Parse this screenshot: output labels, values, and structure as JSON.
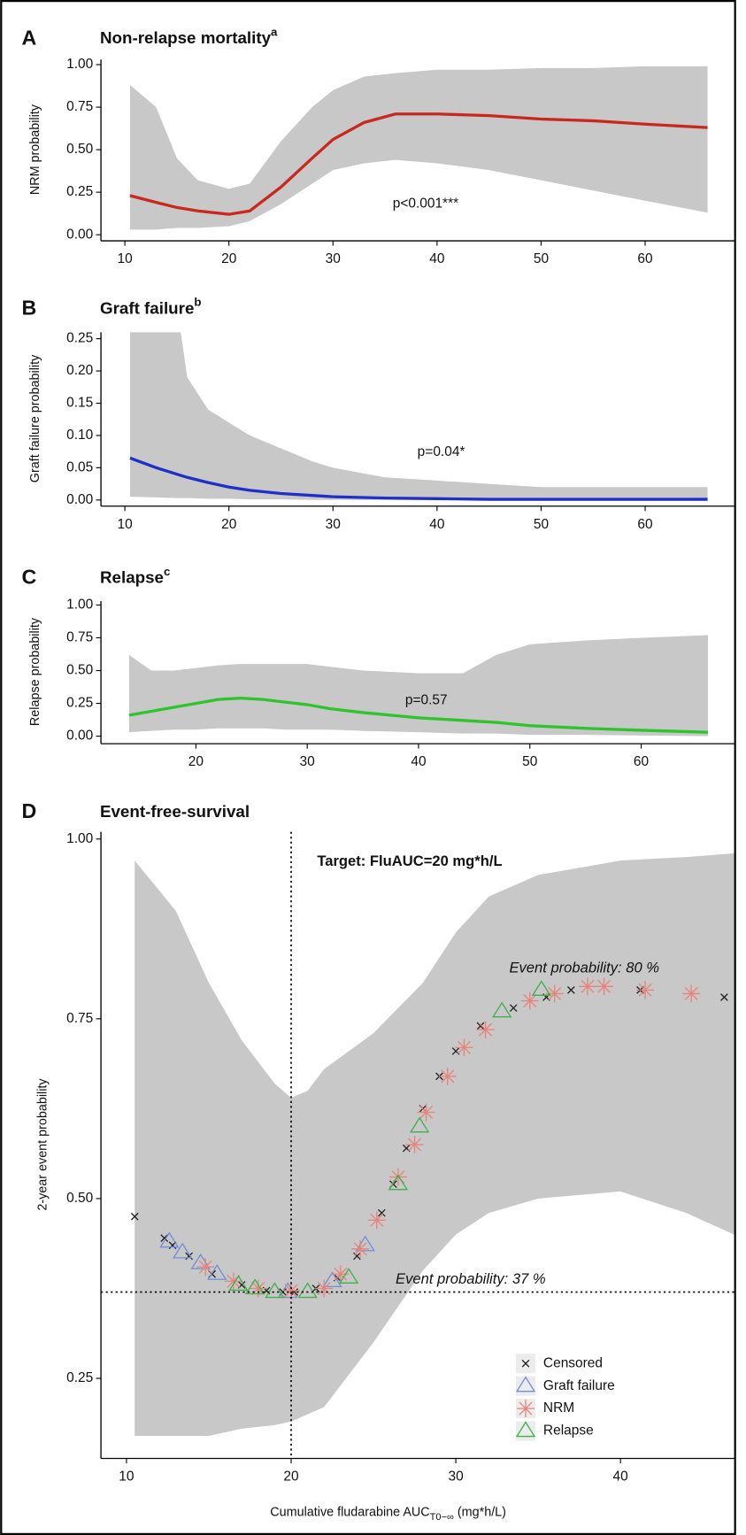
{
  "chart_data": [
    {
      "type": "line",
      "panel": "A",
      "title": "Non-relapse mortality",
      "title_superscript": "a",
      "ylabel": "NRM probability",
      "xlim": [
        7.7,
        68.55
      ],
      "ylim": [
        -0.03,
        1.03
      ],
      "xticks": [
        10,
        20,
        30,
        40,
        50,
        60
      ],
      "yticks": [
        {
          "value": 0,
          "label": "0.00"
        },
        0.25,
        {
          "value": 0.5,
          "label": "0.50"
        },
        0.75,
        {
          "value": 1,
          "label": "1.00"
        }
      ],
      "color": "#c8281e",
      "band_color": "#c8c8c8",
      "x": [
        10.5,
        13,
        15,
        17,
        20,
        22,
        25,
        28,
        30,
        33,
        36,
        40,
        45,
        50,
        55,
        60,
        66
      ],
      "values": [
        0.23,
        0.19,
        0.16,
        0.14,
        0.12,
        0.14,
        0.28,
        0.45,
        0.56,
        0.66,
        0.71,
        0.71,
        0.7,
        0.68,
        0.67,
        0.65,
        0.63
      ],
      "upper": [
        0.88,
        0.75,
        0.45,
        0.32,
        0.27,
        0.3,
        0.55,
        0.75,
        0.85,
        0.93,
        0.95,
        0.97,
        0.97,
        0.98,
        0.98,
        0.99,
        0.99
      ],
      "lower": [
        0.03,
        0.03,
        0.04,
        0.04,
        0.05,
        0.08,
        0.18,
        0.3,
        0.38,
        0.42,
        0.44,
        0.42,
        0.38,
        0.32,
        0.26,
        0.2,
        0.13
      ],
      "annotations": [
        {
          "text": "p<0.001***",
          "x": 38.9,
          "y": 0.18
        }
      ]
    },
    {
      "type": "line",
      "panel": "B",
      "title": "Graft failure",
      "title_superscript": "b",
      "ylabel": "Graft failure probability",
      "xlim": [
        7.7,
        68.55
      ],
      "ylim": [
        -0.008,
        0.26
      ],
      "xticks": [
        10,
        20,
        30,
        40,
        50,
        60
      ],
      "yticks": [
        {
          "value": 0,
          "label": "0.00"
        },
        0.05,
        {
          "value": 0.1,
          "label": "0.10"
        },
        0.15,
        {
          "value": 0.2,
          "label": "0.20"
        },
        0.25
      ],
      "color": "#1f2fc8",
      "band_color": "#c8c8c8",
      "x": [
        10.5,
        13,
        15,
        16,
        18,
        20,
        22,
        25,
        28,
        30,
        35,
        40,
        45,
        50,
        55,
        60,
        66
      ],
      "values": [
        0.065,
        0.05,
        0.04,
        0.035,
        0.027,
        0.02,
        0.015,
        0.01,
        0.007,
        0.005,
        0.003,
        0.002,
        0.001,
        0.001,
        0.001,
        0.001,
        0.001
      ],
      "upper": [
        0.3,
        0.3,
        0.3,
        0.19,
        0.14,
        0.12,
        0.1,
        0.08,
        0.06,
        0.05,
        0.035,
        0.03,
        0.025,
        0.02,
        0.02,
        0.02,
        0.02
      ],
      "lower": [
        0.005,
        0.004,
        0.003,
        0.003,
        0.002,
        0.002,
        0.001,
        0.001,
        0,
        0,
        0,
        0,
        0,
        0,
        0,
        0,
        0
      ],
      "annotations": [
        {
          "text": "p=0.04*",
          "x": 40.4,
          "y": 0.074
        }
      ]
    },
    {
      "type": "line",
      "panel": "C",
      "title": "Relapse",
      "title_superscript": "c",
      "ylabel": "Relapse probability",
      "xlim": [
        11.47,
        68.35
      ],
      "ylim": [
        -0.05,
        1.03
      ],
      "xticks": [
        20,
        30,
        40,
        50,
        60
      ],
      "yticks": [
        {
          "value": 0,
          "label": "0.00"
        },
        0.25,
        {
          "value": 0.5,
          "label": "0.50"
        },
        0.75,
        {
          "value": 1,
          "label": "1.00"
        }
      ],
      "color": "#2ec42a",
      "band_color": "#c8c8c8",
      "x": [
        14,
        16,
        18,
        20,
        22,
        24,
        26,
        28,
        30,
        32,
        35,
        40,
        44,
        47,
        50,
        55,
        60,
        66
      ],
      "values": [
        0.16,
        0.19,
        0.22,
        0.25,
        0.28,
        0.29,
        0.28,
        0.26,
        0.24,
        0.21,
        0.18,
        0.14,
        0.12,
        0.105,
        0.08,
        0.06,
        0.045,
        0.03
      ],
      "upper": [
        0.62,
        0.5,
        0.5,
        0.52,
        0.54,
        0.55,
        0.55,
        0.55,
        0.55,
        0.53,
        0.5,
        0.48,
        0.48,
        0.62,
        0.7,
        0.73,
        0.75,
        0.77
      ],
      "lower": [
        0.03,
        0.04,
        0.05,
        0.05,
        0.06,
        0.06,
        0.06,
        0.05,
        0.05,
        0.05,
        0.04,
        0.03,
        0.02,
        0.02,
        0.01,
        0.01,
        0.005,
        0
      ],
      "annotations": [
        {
          "text": "p=0.57",
          "x": 40.7,
          "y": 0.27
        }
      ]
    },
    {
      "type": "scatter",
      "panel": "D",
      "title": "Event-free-survival",
      "ylabel": "2-year event probability",
      "xlabel": [
        "Cumulative fludarabine AUC",
        "T0−∞",
        " (mg*h/L)"
      ],
      "xlim": [
        8.45,
        46.9
      ],
      "ylim": [
        0.14,
        1.01
      ],
      "xticks": [
        10,
        20,
        30,
        40
      ],
      "yticks": [
        0.25,
        {
          "value": 0.5,
          "label": "0.50"
        },
        0.75,
        {
          "value": 1,
          "label": "1.00"
        }
      ],
      "band_color": "#c8c8c8",
      "x": [
        10.5,
        13,
        15,
        17,
        19,
        20,
        21,
        22,
        25,
        28,
        30,
        32,
        35,
        40,
        44,
        46.9
      ],
      "upper": [
        0.97,
        0.9,
        0.8,
        0.72,
        0.66,
        0.64,
        0.65,
        0.68,
        0.73,
        0.8,
        0.87,
        0.92,
        0.95,
        0.97,
        0.975,
        0.98
      ],
      "lower": [
        0.17,
        0.17,
        0.17,
        0.18,
        0.185,
        0.19,
        0.2,
        0.21,
        0.3,
        0.4,
        0.45,
        0.48,
        0.5,
        0.51,
        0.48,
        0.45
      ],
      "vline": 20,
      "hline": 0.37,
      "annotations": [
        {
          "text": "Target: FluAUC=20 mg*h/L",
          "x": 27.2,
          "y": 0.968
        },
        {
          "text": "Event probability: 80 %",
          "x": 37.8,
          "y": 0.82
        },
        {
          "text": "Event probability: 37 %",
          "x": 30.9,
          "y": 0.387
        }
      ],
      "legend": "bottom-right",
      "series": [
        {
          "name": "Censored",
          "color": "#222222",
          "marker": "x",
          "x": [
            10.5,
            12.3,
            12.8,
            13.8,
            15.2,
            17,
            18.5,
            19.5,
            20.2,
            21.5,
            22.8,
            24,
            25.5,
            26.2,
            27,
            28,
            29,
            30,
            31.5,
            33.5,
            35.5,
            37,
            41.2,
            46.3
          ],
          "values": [
            0.475,
            0.445,
            0.435,
            0.42,
            0.395,
            0.38,
            0.372,
            0.37,
            0.37,
            0.375,
            0.39,
            0.42,
            0.48,
            0.52,
            0.57,
            0.625,
            0.67,
            0.705,
            0.74,
            0.765,
            0.78,
            0.79,
            0.79,
            0.78
          ]
        },
        {
          "name": "Graft failure",
          "color": "#6f8fd8",
          "marker": "triangle",
          "x": [
            12.6,
            13.4,
            14.5,
            15.5,
            19.8,
            22.5,
            24.5
          ],
          "values": [
            0.44,
            0.425,
            0.41,
            0.395,
            0.37,
            0.385,
            0.435
          ]
        },
        {
          "name": "NRM",
          "color": "#e8837a",
          "marker": "asterisk",
          "x": [
            14.8,
            16.5,
            18,
            20,
            22,
            23,
            24.2,
            25.2,
            26.5,
            27.5,
            28.2,
            29.5,
            30.5,
            31.8,
            34.5,
            36,
            38,
            39,
            41.5,
            44.3
          ],
          "values": [
            0.405,
            0.385,
            0.375,
            0.372,
            0.375,
            0.395,
            0.43,
            0.47,
            0.53,
            0.575,
            0.62,
            0.67,
            0.71,
            0.735,
            0.775,
            0.785,
            0.795,
            0.795,
            0.79,
            0.785
          ]
        },
        {
          "name": "Relapse",
          "color": "#3fb04a",
          "marker": "triangle",
          "x": [
            16.8,
            17.8,
            19,
            21,
            23.5,
            26.5,
            27.8,
            32.8,
            35.2
          ],
          "values": [
            0.38,
            0.375,
            0.37,
            0.37,
            0.39,
            0.52,
            0.6,
            0.76,
            0.79
          ]
        }
      ]
    }
  ]
}
